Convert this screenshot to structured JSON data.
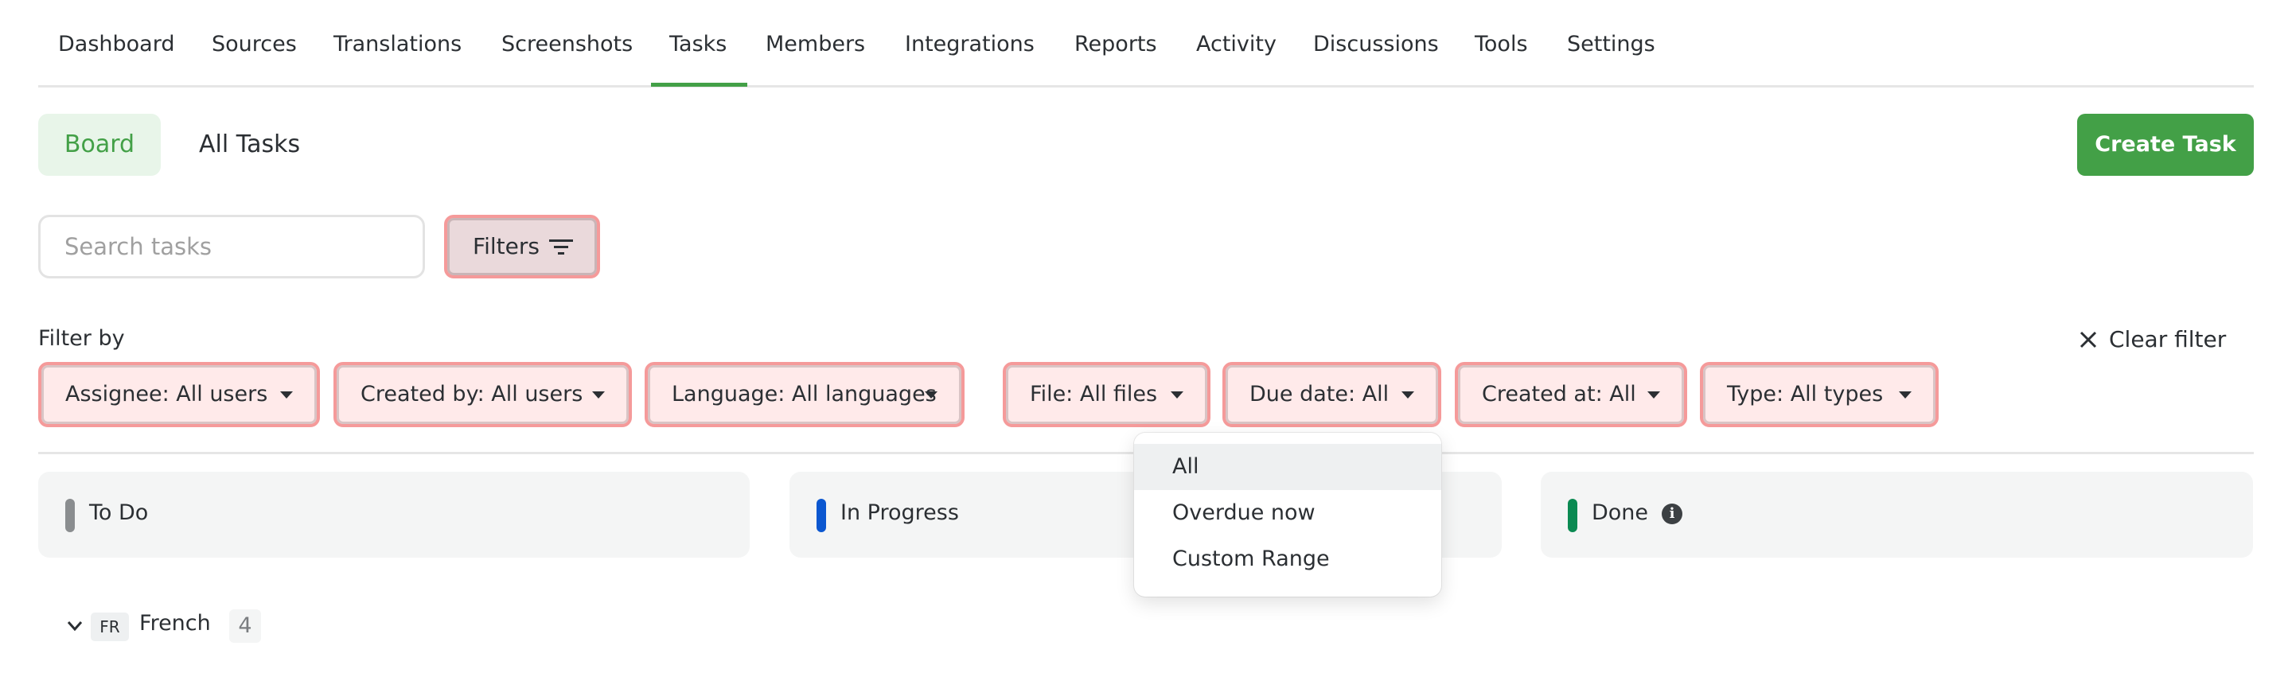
{
  "nav": {
    "items": [
      "Dashboard",
      "Sources",
      "Translations",
      "Screenshots",
      "Tasks",
      "Members",
      "Integrations",
      "Reports",
      "Activity",
      "Discussions",
      "Tools",
      "Settings"
    ],
    "active": "Tasks"
  },
  "view": {
    "board": "Board",
    "all_tasks": "All Tasks",
    "create_task": "Create Task"
  },
  "search": {
    "placeholder": "Search tasks",
    "value": ""
  },
  "filters_button": "Filters",
  "filter_by": "Filter by",
  "clear_filter": "Clear filter",
  "chips": [
    "Assignee: All users",
    "Created by: All users",
    "Language: All languages",
    "File: All files",
    "Due date: All",
    "Created at: All",
    "Type: All types"
  ],
  "dropdown": {
    "items": [
      "All",
      "Overdue now",
      "Custom Range"
    ],
    "selected": "All"
  },
  "columns": [
    {
      "title": "To Do",
      "color": "#8a8d8f"
    },
    {
      "title": "In Progress",
      "color": "#0b57d0"
    },
    {
      "title": "Done",
      "color": "#0b8a52"
    }
  ],
  "group": {
    "code": "FR",
    "name": "French",
    "count": "4"
  },
  "colors": {
    "accent": "#43a047"
  }
}
